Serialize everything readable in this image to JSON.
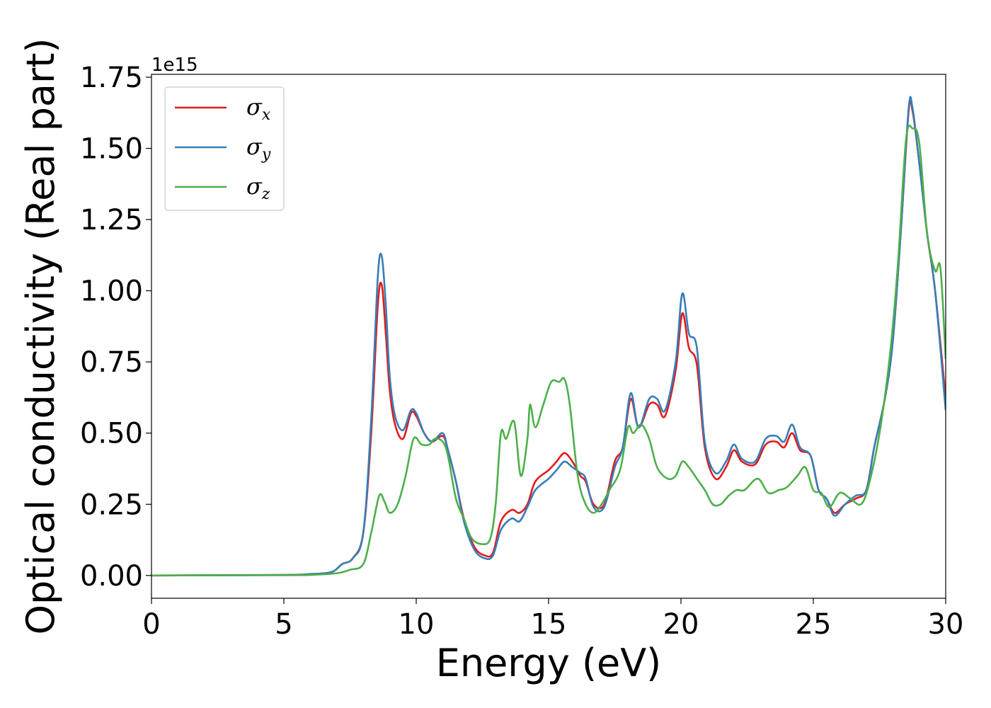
{
  "chart_data": {
    "type": "line",
    "xlabel": "Energy (eV)",
    "ylabel": "Optical conductivity (Real part)",
    "y_offset_label": "1e15",
    "y_scale": 1000000000000000.0,
    "xlim": [
      0,
      30
    ],
    "ylim": [
      -0.08,
      1.76
    ],
    "x_ticks": [
      0,
      5,
      10,
      15,
      20,
      25,
      30
    ],
    "x_tick_labels": [
      "0",
      "5",
      "10",
      "15",
      "20",
      "25",
      "30"
    ],
    "y_ticks": [
      0,
      0.25,
      0.5,
      0.75,
      1.0,
      1.25,
      1.5,
      1.75
    ],
    "y_tick_labels": [
      "0.00",
      "0.25",
      "0.50",
      "0.75",
      "1.00",
      "1.25",
      "1.50",
      "1.75"
    ],
    "grid": false,
    "legend_position": "top-left",
    "series": [
      {
        "name": "σ",
        "subscript": "x",
        "color": "#e41a1c",
        "points": [
          [
            0,
            0
          ],
          [
            5,
            0.002
          ],
          [
            6,
            0.005
          ],
          [
            6.8,
            0.012
          ],
          [
            7.2,
            0.04
          ],
          [
            7.6,
            0.06
          ],
          [
            8.0,
            0.15
          ],
          [
            8.3,
            0.5
          ],
          [
            8.55,
            0.95
          ],
          [
            8.7,
            1.02
          ],
          [
            8.85,
            0.85
          ],
          [
            9.0,
            0.65
          ],
          [
            9.2,
            0.53
          ],
          [
            9.5,
            0.48
          ],
          [
            9.8,
            0.57
          ],
          [
            10.0,
            0.56
          ],
          [
            10.3,
            0.5
          ],
          [
            10.6,
            0.47
          ],
          [
            11.0,
            0.49
          ],
          [
            11.2,
            0.44
          ],
          [
            11.5,
            0.33
          ],
          [
            11.8,
            0.2
          ],
          [
            12.2,
            0.1
          ],
          [
            12.6,
            0.07
          ],
          [
            12.9,
            0.08
          ],
          [
            13.2,
            0.19
          ],
          [
            13.6,
            0.23
          ],
          [
            13.9,
            0.22
          ],
          [
            14.2,
            0.25
          ],
          [
            14.5,
            0.33
          ],
          [
            15.0,
            0.37
          ],
          [
            15.3,
            0.4
          ],
          [
            15.6,
            0.43
          ],
          [
            15.9,
            0.4
          ],
          [
            16.2,
            0.35
          ],
          [
            16.4,
            0.33
          ],
          [
            16.7,
            0.25
          ],
          [
            17.1,
            0.25
          ],
          [
            17.5,
            0.4
          ],
          [
            17.8,
            0.45
          ],
          [
            18.1,
            0.62
          ],
          [
            18.4,
            0.52
          ],
          [
            18.8,
            0.6
          ],
          [
            19.1,
            0.6
          ],
          [
            19.4,
            0.56
          ],
          [
            19.8,
            0.72
          ],
          [
            20.05,
            0.92
          ],
          [
            20.3,
            0.8
          ],
          [
            20.6,
            0.74
          ],
          [
            20.9,
            0.45
          ],
          [
            21.3,
            0.34
          ],
          [
            21.7,
            0.38
          ],
          [
            22.0,
            0.44
          ],
          [
            22.3,
            0.4
          ],
          [
            22.8,
            0.39
          ],
          [
            23.2,
            0.46
          ],
          [
            23.6,
            0.47
          ],
          [
            23.9,
            0.45
          ],
          [
            24.2,
            0.5
          ],
          [
            24.5,
            0.44
          ],
          [
            24.9,
            0.42
          ],
          [
            25.2,
            0.3
          ],
          [
            25.5,
            0.27
          ],
          [
            25.8,
            0.22
          ],
          [
            26.2,
            0.25
          ],
          [
            26.6,
            0.27
          ],
          [
            27.0,
            0.3
          ],
          [
            27.3,
            0.45
          ],
          [
            27.7,
            0.62
          ],
          [
            28.0,
            0.82
          ],
          [
            28.3,
            1.2
          ],
          [
            28.6,
            1.63
          ],
          [
            28.75,
            1.63
          ],
          [
            29.0,
            1.45
          ],
          [
            29.3,
            1.2
          ],
          [
            29.6,
            1.0
          ],
          [
            30,
            0.62
          ]
        ]
      },
      {
        "name": "σ",
        "subscript": "y",
        "color": "#377eb8",
        "points": [
          [
            0,
            0
          ],
          [
            5,
            0.002
          ],
          [
            6,
            0.005
          ],
          [
            6.8,
            0.012
          ],
          [
            7.2,
            0.04
          ],
          [
            7.6,
            0.06
          ],
          [
            8.0,
            0.15
          ],
          [
            8.3,
            0.55
          ],
          [
            8.55,
            1.05
          ],
          [
            8.7,
            1.12
          ],
          [
            8.85,
            0.95
          ],
          [
            9.0,
            0.7
          ],
          [
            9.2,
            0.56
          ],
          [
            9.5,
            0.51
          ],
          [
            9.8,
            0.58
          ],
          [
            10.0,
            0.57
          ],
          [
            10.3,
            0.5
          ],
          [
            10.6,
            0.47
          ],
          [
            11.0,
            0.5
          ],
          [
            11.2,
            0.44
          ],
          [
            11.5,
            0.33
          ],
          [
            11.8,
            0.19
          ],
          [
            12.2,
            0.09
          ],
          [
            12.6,
            0.06
          ],
          [
            12.9,
            0.07
          ],
          [
            13.2,
            0.16
          ],
          [
            13.6,
            0.2
          ],
          [
            13.9,
            0.19
          ],
          [
            14.2,
            0.24
          ],
          [
            14.5,
            0.3
          ],
          [
            15.0,
            0.34
          ],
          [
            15.3,
            0.37
          ],
          [
            15.6,
            0.4
          ],
          [
            15.9,
            0.38
          ],
          [
            16.2,
            0.36
          ],
          [
            16.4,
            0.34
          ],
          [
            16.7,
            0.24
          ],
          [
            17.1,
            0.24
          ],
          [
            17.5,
            0.38
          ],
          [
            17.8,
            0.45
          ],
          [
            18.1,
            0.64
          ],
          [
            18.4,
            0.52
          ],
          [
            18.8,
            0.62
          ],
          [
            19.1,
            0.62
          ],
          [
            19.4,
            0.58
          ],
          [
            19.8,
            0.75
          ],
          [
            20.05,
            0.99
          ],
          [
            20.3,
            0.85
          ],
          [
            20.6,
            0.8
          ],
          [
            20.9,
            0.47
          ],
          [
            21.3,
            0.36
          ],
          [
            21.7,
            0.4
          ],
          [
            22.0,
            0.46
          ],
          [
            22.3,
            0.41
          ],
          [
            22.8,
            0.4
          ],
          [
            23.2,
            0.48
          ],
          [
            23.6,
            0.49
          ],
          [
            23.9,
            0.47
          ],
          [
            24.2,
            0.53
          ],
          [
            24.5,
            0.45
          ],
          [
            24.9,
            0.42
          ],
          [
            25.2,
            0.3
          ],
          [
            25.5,
            0.27
          ],
          [
            25.8,
            0.21
          ],
          [
            26.2,
            0.25
          ],
          [
            26.6,
            0.28
          ],
          [
            27.0,
            0.3
          ],
          [
            27.3,
            0.45
          ],
          [
            27.7,
            0.62
          ],
          [
            28.0,
            0.82
          ],
          [
            28.3,
            1.2
          ],
          [
            28.6,
            1.64
          ],
          [
            28.75,
            1.64
          ],
          [
            29.0,
            1.45
          ],
          [
            29.3,
            1.2
          ],
          [
            29.6,
            1.0
          ],
          [
            30,
            0.58
          ]
        ]
      },
      {
        "name": "σ",
        "subscript": "z",
        "color": "#4daf4a",
        "points": [
          [
            0,
            0
          ],
          [
            5,
            0.001
          ],
          [
            6,
            0.002
          ],
          [
            7,
            0.008
          ],
          [
            7.5,
            0.02
          ],
          [
            8.0,
            0.04
          ],
          [
            8.3,
            0.15
          ],
          [
            8.6,
            0.28
          ],
          [
            8.8,
            0.26
          ],
          [
            9.0,
            0.22
          ],
          [
            9.3,
            0.25
          ],
          [
            9.6,
            0.35
          ],
          [
            9.9,
            0.48
          ],
          [
            10.2,
            0.46
          ],
          [
            10.5,
            0.46
          ],
          [
            10.7,
            0.48
          ],
          [
            11.0,
            0.47
          ],
          [
            11.2,
            0.42
          ],
          [
            11.5,
            0.27
          ],
          [
            11.8,
            0.2
          ],
          [
            12.1,
            0.13
          ],
          [
            12.5,
            0.11
          ],
          [
            12.8,
            0.13
          ],
          [
            13.0,
            0.25
          ],
          [
            13.2,
            0.5
          ],
          [
            13.4,
            0.48
          ],
          [
            13.7,
            0.54
          ],
          [
            13.95,
            0.35
          ],
          [
            14.2,
            0.48
          ],
          [
            14.3,
            0.6
          ],
          [
            14.5,
            0.52
          ],
          [
            14.8,
            0.6
          ],
          [
            15.1,
            0.68
          ],
          [
            15.4,
            0.68
          ],
          [
            15.6,
            0.69
          ],
          [
            15.8,
            0.6
          ],
          [
            16.1,
            0.35
          ],
          [
            16.4,
            0.25
          ],
          [
            16.7,
            0.22
          ],
          [
            17.0,
            0.25
          ],
          [
            17.3,
            0.3
          ],
          [
            17.7,
            0.37
          ],
          [
            18.0,
            0.52
          ],
          [
            18.2,
            0.5
          ],
          [
            18.5,
            0.53
          ],
          [
            18.8,
            0.48
          ],
          [
            19.1,
            0.38
          ],
          [
            19.5,
            0.34
          ],
          [
            19.8,
            0.35
          ],
          [
            20.05,
            0.4
          ],
          [
            20.3,
            0.38
          ],
          [
            20.6,
            0.34
          ],
          [
            20.9,
            0.3
          ],
          [
            21.2,
            0.25
          ],
          [
            21.5,
            0.25
          ],
          [
            21.8,
            0.28
          ],
          [
            22.1,
            0.3
          ],
          [
            22.4,
            0.3
          ],
          [
            22.9,
            0.34
          ],
          [
            23.3,
            0.29
          ],
          [
            23.7,
            0.3
          ],
          [
            24.0,
            0.31
          ],
          [
            24.4,
            0.35
          ],
          [
            24.7,
            0.38
          ],
          [
            25.0,
            0.3
          ],
          [
            25.3,
            0.29
          ],
          [
            25.6,
            0.24
          ],
          [
            26.0,
            0.29
          ],
          [
            26.4,
            0.27
          ],
          [
            26.8,
            0.25
          ],
          [
            27.1,
            0.32
          ],
          [
            27.5,
            0.5
          ],
          [
            27.9,
            0.78
          ],
          [
            28.2,
            1.1
          ],
          [
            28.5,
            1.53
          ],
          [
            28.75,
            1.57
          ],
          [
            29.0,
            1.52
          ],
          [
            29.3,
            1.2
          ],
          [
            29.6,
            1.07
          ],
          [
            29.8,
            1.08
          ],
          [
            30,
            0.76
          ]
        ]
      }
    ]
  }
}
